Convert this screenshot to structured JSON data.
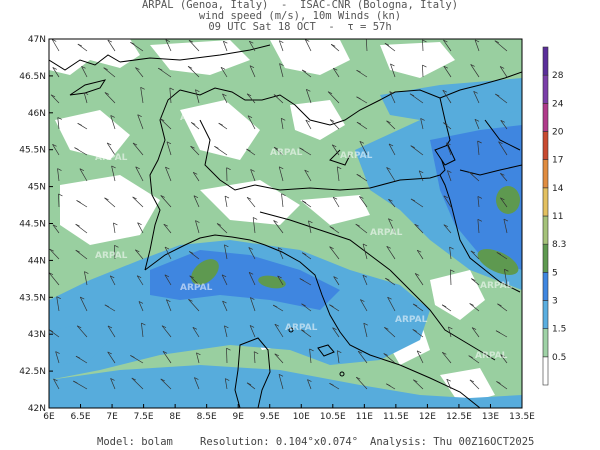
{
  "header": {
    "line1": "ARPAL (Genoa, Italy)  -  ISAC-CNR (Bologna, Italy)",
    "line2": "wind speed (m/s), 10m Winds (kn)",
    "line3": "09 UTC Sat 18 OCT  -  τ = 57h"
  },
  "map": {
    "lat_labels": [
      "47N",
      "46.5N",
      "46N",
      "45.5N",
      "45N",
      "44.5N",
      "44N",
      "43.5N",
      "43N",
      "42.5N",
      "42N"
    ],
    "lon_labels": [
      "6E",
      "6.5E",
      "7E",
      "7.5E",
      "8E",
      "8.5E",
      "9E",
      "9.5E",
      "10E",
      "10.5E",
      "11E",
      "11.5E",
      "12E",
      "12.5E",
      "13E",
      "13.5E"
    ],
    "watermark": "ARPAL",
    "colors": {
      "white": "#ffffff",
      "green": "#99cfa0",
      "light_blue": "#57acdc",
      "mid_blue": "#3f86e0",
      "dark_green": "#5e9950",
      "sea": "#4b9ad8",
      "border": "#000000"
    }
  },
  "colorbar": {
    "labels": [
      "0.5",
      "1.5",
      "3",
      "5",
      "8.3",
      "11",
      "14",
      "17",
      "20",
      "24",
      "28"
    ],
    "colors": [
      "#ffffff",
      "#9fd2a6",
      "#5aaee0",
      "#3f86e0",
      "#5e9950",
      "#a5c27a",
      "#e3c060",
      "#e08c40",
      "#c84a30",
      "#b03a8a",
      "#7a3ea8",
      "#5a2e9a"
    ]
  },
  "footer": {
    "model": "Model: bolam",
    "resolution": "Resolution: 0.104°x0.074°",
    "analysis": "Analysis: Thu 00Z16OCT2025"
  }
}
